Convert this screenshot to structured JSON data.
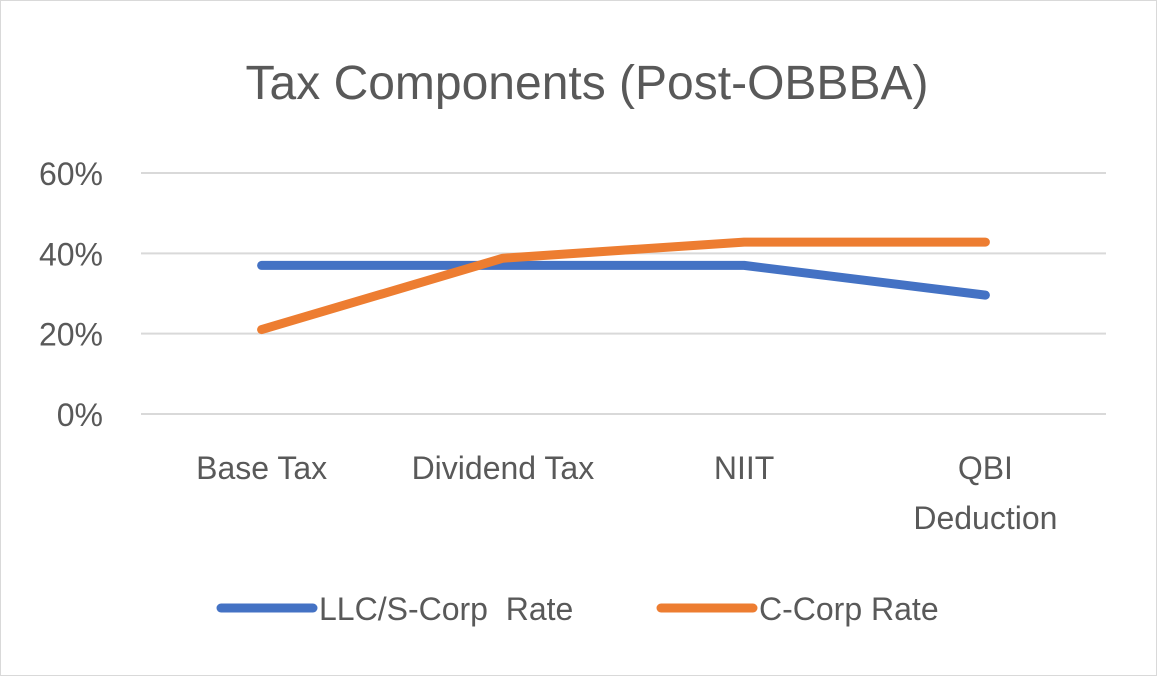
{
  "chart_data": {
    "type": "line",
    "title": "Tax Components (Post-OBBBA)",
    "categories": [
      "Base Tax",
      "Dividend Tax",
      "NIIT",
      "QBI Deduction"
    ],
    "category_lines": [
      [
        "Base Tax"
      ],
      [
        "Dividend Tax"
      ],
      [
        "NIIT"
      ],
      [
        "QBI",
        "Deduction"
      ]
    ],
    "series": [
      {
        "name": "LLC/S-Corp  Rate",
        "values": [
          0.37,
          0.37,
          0.37,
          0.296
        ],
        "color": "#4472C4"
      },
      {
        "name": "C-Corp Rate",
        "values": [
          0.21,
          0.388,
          0.428,
          0.428
        ],
        "color": "#ED7D31"
      }
    ],
    "y_ticks": [
      0,
      0.2,
      0.4,
      0.6
    ],
    "y_tick_labels": [
      "0%",
      "20%",
      "40%",
      "60%"
    ],
    "ylim": [
      0,
      0.6
    ],
    "grid": true,
    "legend_position": "bottom",
    "gridline_color": "#d9d9d9"
  }
}
